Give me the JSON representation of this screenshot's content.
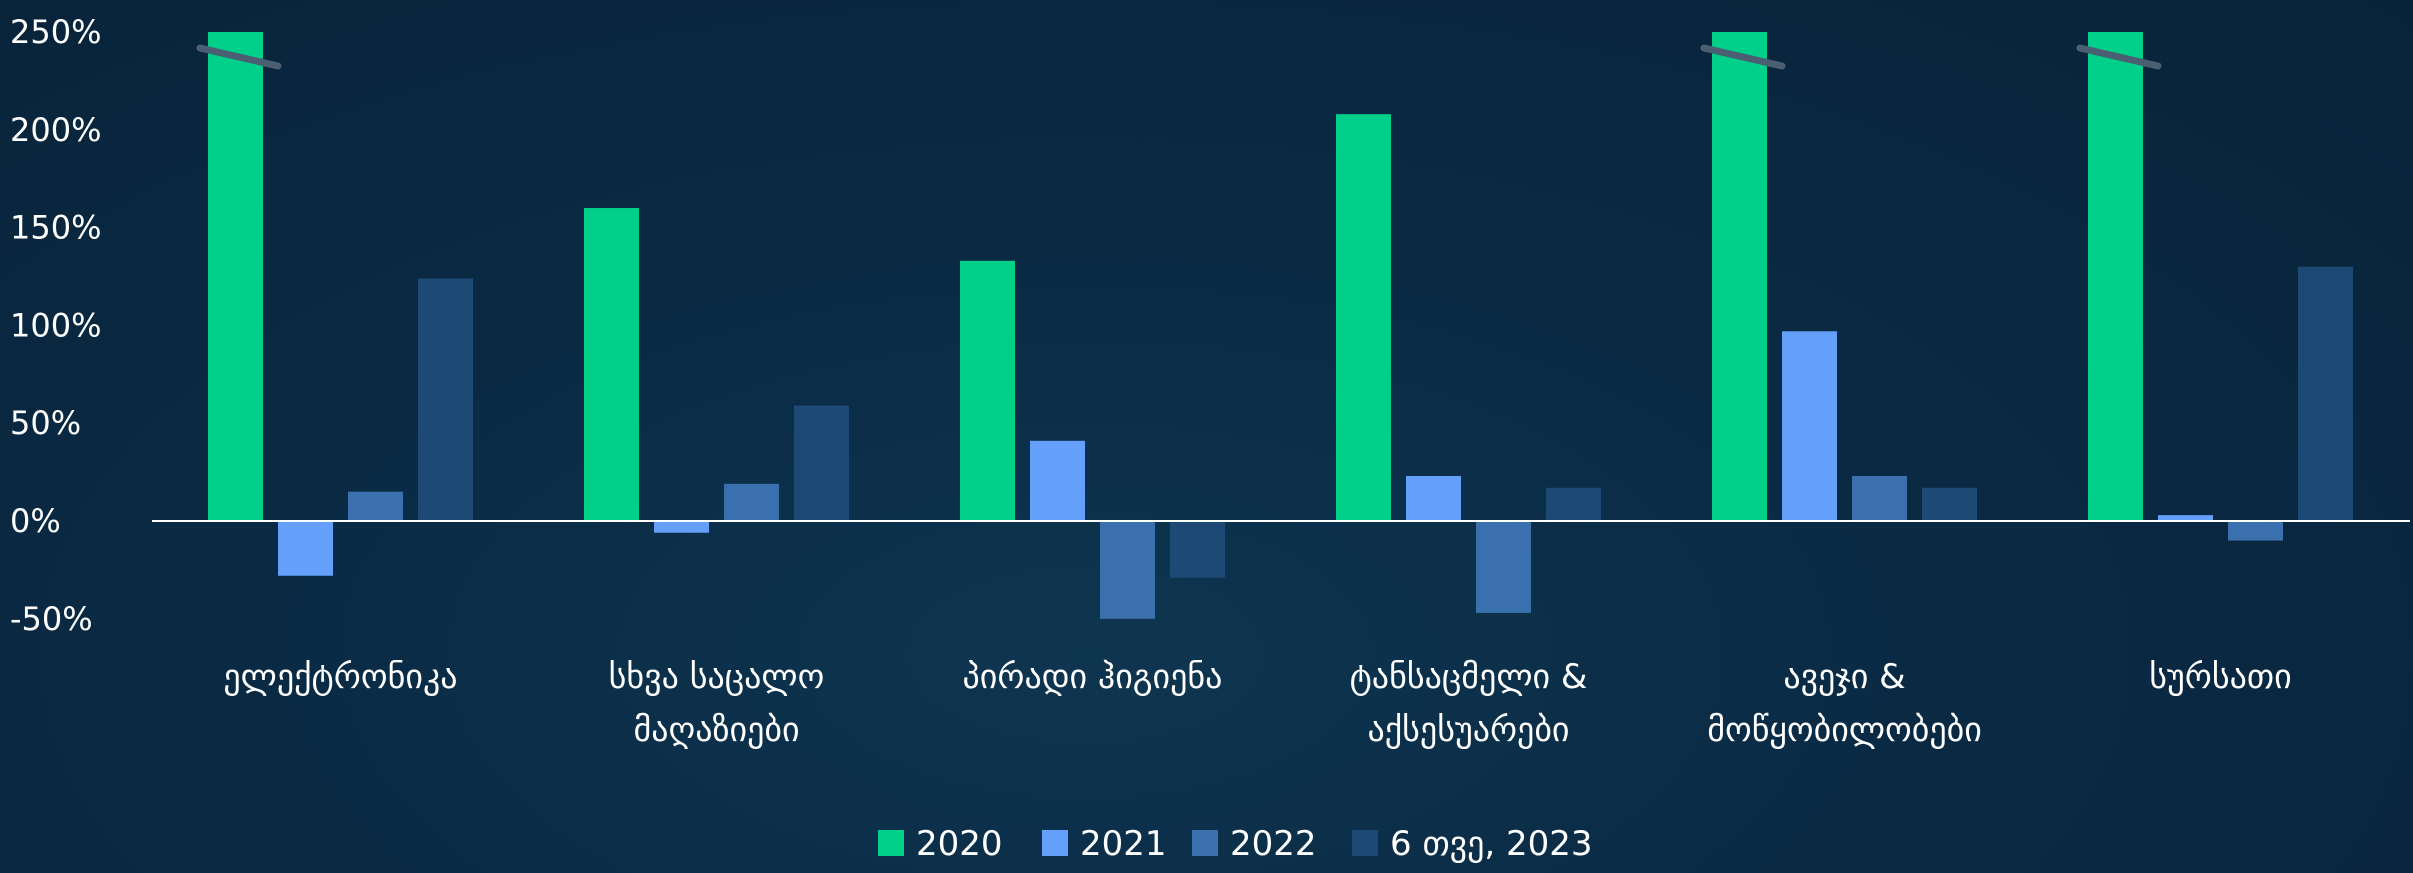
{
  "chart_data": {
    "type": "bar",
    "title": "",
    "xlabel": "",
    "ylabel": "",
    "ylim": [
      -50,
      250
    ],
    "yticks": [
      "250%",
      "200%",
      "150%",
      "100%",
      "50%",
      "0%",
      "-50%"
    ],
    "ytick_values": [
      250,
      200,
      150,
      100,
      50,
      0,
      -50
    ],
    "categories": [
      [
        "ელექტრონიკა"
      ],
      [
        "სხვა საცალო",
        "მაღაზიები"
      ],
      [
        "პირადი ჰიგიენა"
      ],
      [
        "ტანსაცმელი &",
        "აქსესუარები"
      ],
      [
        "ავეჯი &",
        "მოწყობილობები"
      ],
      [
        "სურსათი"
      ]
    ],
    "series": [
      {
        "name": "2020",
        "color": "#00d08a",
        "values": [
          250,
          160,
          133,
          208,
          250,
          250
        ],
        "truncated": [
          true,
          false,
          false,
          false,
          true,
          true
        ]
      },
      {
        "name": "2021",
        "color": "#649ffb",
        "values": [
          -28,
          -6,
          41,
          23,
          97,
          3
        ],
        "truncated": [
          false,
          false,
          false,
          false,
          false,
          false
        ]
      },
      {
        "name": "2022",
        "color": "#3a70ae",
        "values": [
          15,
          19,
          -50,
          -47,
          23,
          -10
        ],
        "truncated": [
          false,
          false,
          false,
          false,
          false,
          false
        ]
      },
      {
        "name": "6 თვე, 2023",
        "color": "#1d4a75",
        "values": [
          124,
          59,
          -29,
          17,
          17,
          130
        ],
        "truncated": [
          false,
          false,
          false,
          false,
          false,
          false
        ]
      }
    ],
    "legend_position": "bottom-center",
    "grid": false,
    "break_mark_color": "#4a5f72"
  }
}
